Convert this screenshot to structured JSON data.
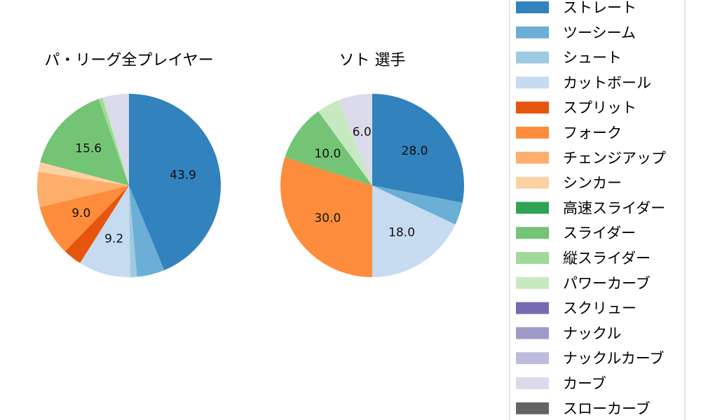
{
  "chart_data": [
    {
      "type": "pie",
      "title": "パ・リーグ全プレイヤー",
      "labels": [
        "ストレート",
        "ツーシーム",
        "シュート",
        "カットボール",
        "スプリット",
        "フォーク",
        "チェンジアップ",
        "シンカー",
        "高速スライダー",
        "スライダー",
        "縦スライダー",
        "パワーカーブ",
        "スクリュー",
        "ナックル",
        "ナックルカーブ",
        "カーブ",
        "スローカーブ"
      ],
      "values": [
        43.9,
        4.9,
        1.2,
        9.2,
        3.3,
        9.0,
        6.2,
        1.7,
        0.0,
        15.6,
        0.7,
        0.3,
        0.0,
        0.0,
        0.0,
        4.4,
        0.0
      ],
      "label_texts": [
        "43.9",
        "",
        "",
        "9.2",
        "",
        "9.0",
        "",
        "",
        "",
        "15.6",
        "",
        "",
        "",
        "",
        "",
        "",
        ""
      ]
    },
    {
      "type": "pie",
      "title": "ソト  選手",
      "labels": [
        "ストレート",
        "ツーシーム",
        "シュート",
        "カットボール",
        "スプリット",
        "フォーク",
        "チェンジアップ",
        "シンカー",
        "高速スライダー",
        "スライダー",
        "縦スライダー",
        "パワーカーブ",
        "スクリュー",
        "ナックル",
        "ナックルカーブ",
        "カーブ",
        "スローカーブ"
      ],
      "values": [
        28.0,
        4.0,
        0.0,
        18.0,
        0.0,
        30.0,
        0.0,
        0.0,
        0.0,
        10.0,
        0.0,
        4.0,
        0.0,
        0.0,
        0.0,
        6.0,
        0.0
      ],
      "label_texts": [
        "28.0",
        "",
        "",
        "18.0",
        "",
        "30.0",
        "",
        "",
        "",
        "10.0",
        "",
        "",
        "",
        "",
        "",
        "6.0",
        ""
      ]
    }
  ],
  "legend": {
    "items": [
      {
        "label": "ストレート",
        "color": "#3182bd"
      },
      {
        "label": "ツーシーム",
        "color": "#6baed6"
      },
      {
        "label": "シュート",
        "color": "#9ecae1"
      },
      {
        "label": "カットボール",
        "color": "#c6dbef"
      },
      {
        "label": "スプリット",
        "color": "#e6550d"
      },
      {
        "label": "フォーク",
        "color": "#fd8d3c"
      },
      {
        "label": "チェンジアップ",
        "color": "#fdae6b"
      },
      {
        "label": "シンカー",
        "color": "#fdd0a2"
      },
      {
        "label": "高速スライダー",
        "color": "#31a354"
      },
      {
        "label": "スライダー",
        "color": "#74c476"
      },
      {
        "label": "縦スライダー",
        "color": "#a1d99b"
      },
      {
        "label": "パワーカーブ",
        "color": "#c7e9c0"
      },
      {
        "label": "スクリュー",
        "color": "#756bb1"
      },
      {
        "label": "ナックル",
        "color": "#9e9ac8"
      },
      {
        "label": "ナックルカーブ",
        "color": "#bcbddc"
      },
      {
        "label": "カーブ",
        "color": "#dadaeb"
      },
      {
        "label": "スローカーブ",
        "color": "#636363"
      }
    ]
  }
}
